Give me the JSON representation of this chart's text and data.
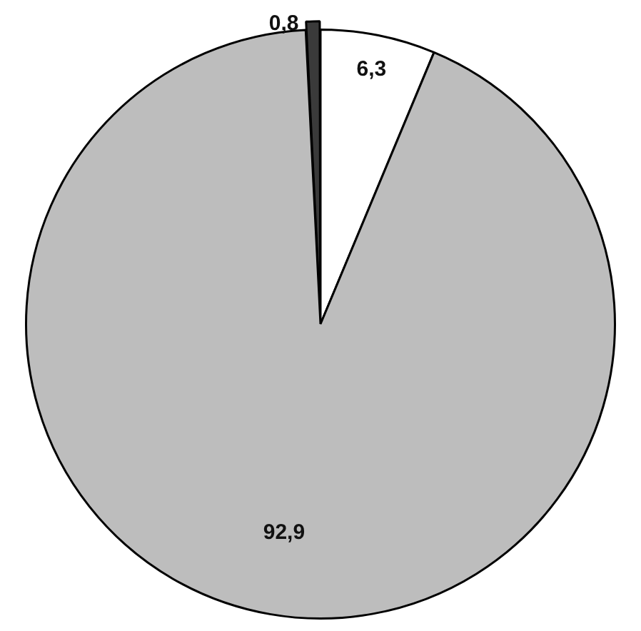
{
  "chart_data": {
    "type": "pie",
    "categories": [
      null,
      null,
      null
    ],
    "values": [
      0.8,
      6.3,
      92.9
    ],
    "colors": [
      "#3a3a3a",
      "#ffffff",
      "#bdbdbd"
    ],
    "value_labels": [
      "0,8",
      "6,3",
      "92,9"
    ],
    "legend": false
  }
}
